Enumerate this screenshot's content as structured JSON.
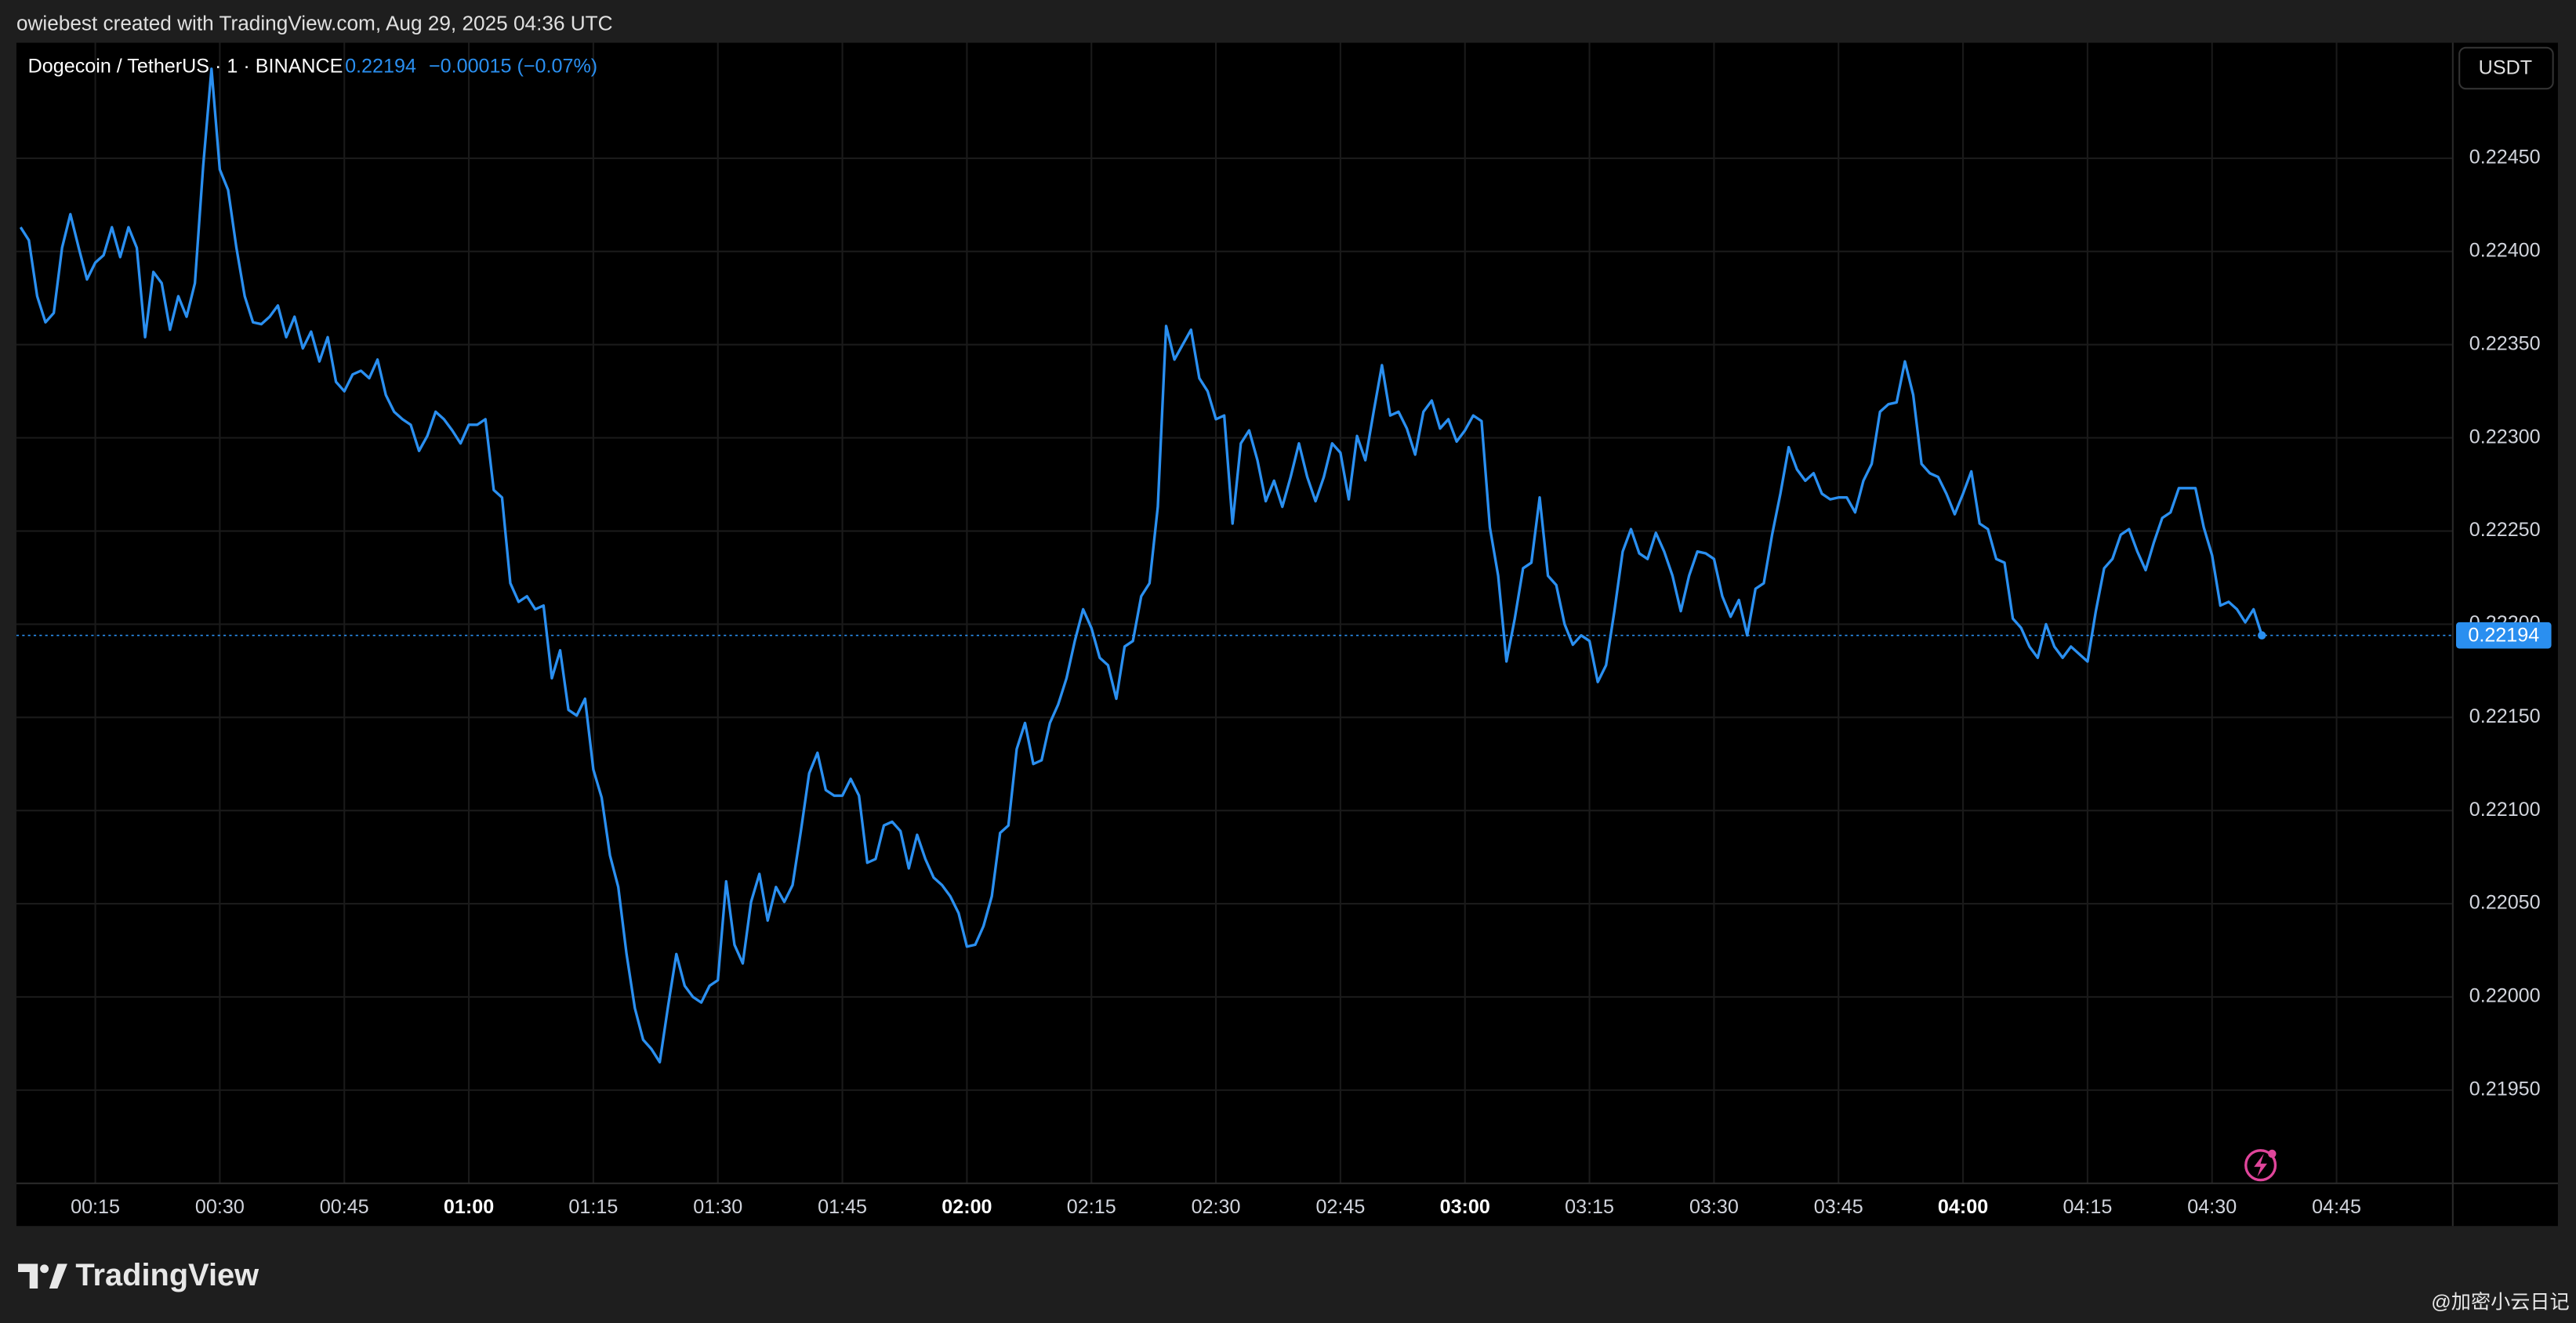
{
  "header": {
    "credit": "owiebest created with TradingView.com, Aug 29, 2025 04:36 UTC",
    "symbol": "Dogecoin / TetherUS · 1 · BINANCE",
    "change": "−0.00015 (−0.07%)",
    "currency": "USDT"
  },
  "footer": {
    "brand": "TradingView",
    "watermark": "@加密小云日记"
  },
  "chart_data": {
    "type": "line",
    "grid": true,
    "x": [
      6,
      7,
      8,
      9,
      10,
      11,
      12,
      13,
      14,
      15,
      16,
      17,
      18,
      19,
      20,
      21,
      22,
      23,
      24,
      25,
      26,
      27,
      28,
      29,
      30,
      31,
      32,
      33,
      34,
      35,
      36,
      37,
      38,
      39,
      40,
      41,
      42,
      43,
      44,
      45,
      46,
      47,
      48,
      49,
      50,
      51,
      52,
      53,
      54,
      55,
      56,
      57,
      58,
      59,
      60,
      61,
      62,
      63,
      64,
      65,
      66,
      67,
      68,
      69,
      70,
      71,
      72,
      73,
      74,
      75,
      76,
      77,
      78,
      79,
      80,
      81,
      82,
      83,
      84,
      85,
      86,
      87,
      88,
      89,
      90,
      91,
      92,
      93,
      94,
      95,
      96,
      97,
      98,
      99,
      100,
      101,
      102,
      103,
      104,
      105,
      106,
      107,
      108,
      109,
      110,
      111,
      112,
      113,
      114,
      115,
      116,
      117,
      118,
      119,
      120,
      121,
      122,
      123,
      124,
      125,
      126,
      127,
      128,
      129,
      130,
      131,
      132,
      133,
      134,
      135,
      136,
      137,
      138,
      139,
      140,
      141,
      142,
      143,
      144,
      145,
      146,
      147,
      148,
      149,
      150,
      151,
      152,
      153,
      154,
      155,
      156,
      157,
      158,
      159,
      160,
      161,
      162,
      163,
      164,
      165,
      166,
      167,
      168,
      169,
      170,
      171,
      172,
      173,
      174,
      175,
      176,
      177,
      178,
      179,
      180,
      181,
      182,
      183,
      184,
      185,
      186,
      187,
      188,
      189,
      190,
      191,
      192,
      193,
      194,
      195,
      196,
      197,
      198,
      199,
      200,
      201,
      202,
      203,
      204,
      205,
      206,
      207,
      208,
      209,
      210,
      211,
      212,
      213,
      214,
      215,
      216,
      217,
      218,
      219,
      220,
      221,
      222,
      223,
      224,
      225,
      226,
      227,
      228,
      229,
      230,
      231,
      232,
      233,
      234,
      235,
      236,
      237,
      238,
      239,
      240,
      241,
      242,
      243,
      244,
      245,
      246,
      247,
      248,
      249,
      250,
      251,
      252,
      253,
      254,
      255,
      256,
      257,
      258,
      259,
      260,
      261,
      262,
      263,
      264,
      265,
      266,
      267,
      268,
      269,
      270,
      271,
      272,
      273,
      274,
      275,
      276
    ],
    "series": [
      {
        "name": "Dogecoin / TetherUS",
        "color": "#2a8ff0",
        "values": [
          0.22413,
          0.22406,
          0.22376,
          0.22362,
          0.22367,
          0.22402,
          0.2242,
          0.22402,
          0.22385,
          0.22394,
          0.22398,
          0.22413,
          0.22397,
          0.22413,
          0.22402,
          0.22354,
          0.22389,
          0.22383,
          0.22358,
          0.22376,
          0.22365,
          0.22383,
          0.22446,
          0.22498,
          0.22444,
          0.22433,
          0.22402,
          0.22376,
          0.22362,
          0.22361,
          0.22365,
          0.22371,
          0.22354,
          0.22365,
          0.22348,
          0.22357,
          0.22341,
          0.22354,
          0.2233,
          0.22325,
          0.22334,
          0.22336,
          0.22332,
          0.22342,
          0.22323,
          0.22314,
          0.2231,
          0.22307,
          0.22293,
          0.22301,
          0.22314,
          0.2231,
          0.22304,
          0.22297,
          0.22307,
          0.22307,
          0.2231,
          0.22272,
          0.22268,
          0.22222,
          0.22212,
          0.22215,
          0.22208,
          0.2221,
          0.22171,
          0.22186,
          0.22154,
          0.22151,
          0.2216,
          0.22122,
          0.22107,
          0.22076,
          0.22059,
          0.22023,
          0.21994,
          0.21977,
          0.21972,
          0.21965,
          0.21995,
          0.22023,
          0.22006,
          0.22,
          0.21997,
          0.22006,
          0.22009,
          0.22062,
          0.22028,
          0.22018,
          0.22051,
          0.22066,
          0.22041,
          0.22059,
          0.22051,
          0.2206,
          0.22089,
          0.2212,
          0.22131,
          0.22111,
          0.22108,
          0.22108,
          0.22117,
          0.22108,
          0.22072,
          0.22074,
          0.22092,
          0.22094,
          0.22089,
          0.22069,
          0.22087,
          0.22074,
          0.22064,
          0.2206,
          0.22054,
          0.22045,
          0.22027,
          0.22028,
          0.22038,
          0.22054,
          0.22088,
          0.22092,
          0.22133,
          0.22147,
          0.22125,
          0.22127,
          0.22147,
          0.22157,
          0.22171,
          0.22191,
          0.22208,
          0.22198,
          0.22182,
          0.22178,
          0.2216,
          0.22188,
          0.22191,
          0.22215,
          0.22222,
          0.22263,
          0.2236,
          0.22342,
          0.2235,
          0.22358,
          0.22332,
          0.22325,
          0.2231,
          0.22312,
          0.22254,
          0.22297,
          0.22304,
          0.22288,
          0.22266,
          0.22277,
          0.22263,
          0.22279,
          0.22297,
          0.22279,
          0.22266,
          0.22279,
          0.22297,
          0.22292,
          0.22267,
          0.22301,
          0.22288,
          0.22314,
          0.22339,
          0.22312,
          0.22314,
          0.22305,
          0.22291,
          0.22314,
          0.2232,
          0.22305,
          0.2231,
          0.22298,
          0.22304,
          0.22312,
          0.22309,
          0.22252,
          0.22226,
          0.2218,
          0.22203,
          0.2223,
          0.22233,
          0.22268,
          0.22226,
          0.22221,
          0.222,
          0.22189,
          0.22194,
          0.22191,
          0.22169,
          0.22178,
          0.22207,
          0.22239,
          0.22251,
          0.22238,
          0.22235,
          0.22249,
          0.22239,
          0.22226,
          0.22207,
          0.22226,
          0.22239,
          0.22238,
          0.22235,
          0.22215,
          0.22204,
          0.22213,
          0.22194,
          0.22219,
          0.22222,
          0.22248,
          0.2227,
          0.22295,
          0.22283,
          0.22277,
          0.22281,
          0.2227,
          0.22267,
          0.22268,
          0.22268,
          0.2226,
          0.22277,
          0.22286,
          0.22314,
          0.22318,
          0.22319,
          0.22341,
          0.22323,
          0.22286,
          0.22281,
          0.22279,
          0.2227,
          0.22259,
          0.2227,
          0.22282,
          0.22254,
          0.22251,
          0.22235,
          0.22233,
          0.22203,
          0.22198,
          0.22188,
          0.22182,
          0.222,
          0.22188,
          0.22182,
          0.22188,
          0.22184,
          0.2218,
          0.22207,
          0.2223,
          0.22235,
          0.22248,
          0.22251,
          0.22239,
          0.22229,
          0.22244,
          0.22257,
          0.2226,
          0.22273,
          0.22273,
          0.22273,
          0.22252,
          0.22237,
          0.2221,
          0.22212,
          0.22208,
          0.22201,
          0.22208,
          0.22194
        ]
      }
    ],
    "xlim": [
      5.5,
      299
    ],
    "xticks": [
      {
        "value": 15,
        "label": "00:15"
      },
      {
        "value": 30,
        "label": "00:30"
      },
      {
        "value": 45,
        "label": "00:45"
      },
      {
        "value": 60,
        "label": "01:00"
      },
      {
        "value": 75,
        "label": "01:15"
      },
      {
        "value": 90,
        "label": "01:30"
      },
      {
        "value": 105,
        "label": "01:45"
      },
      {
        "value": 120,
        "label": "02:00"
      },
      {
        "value": 135,
        "label": "02:15"
      },
      {
        "value": 150,
        "label": "02:30"
      },
      {
        "value": 165,
        "label": "02:45"
      },
      {
        "value": 180,
        "label": "03:00"
      },
      {
        "value": 195,
        "label": "03:15"
      },
      {
        "value": 210,
        "label": "03:30"
      },
      {
        "value": 225,
        "label": "03:45"
      },
      {
        "value": 240,
        "label": "04:00"
      },
      {
        "value": 255,
        "label": "04:15"
      },
      {
        "value": 270,
        "label": "04:30"
      },
      {
        "value": 285,
        "label": "04:45"
      }
    ],
    "ylim": [
      0.219,
      0.22512
    ],
    "yticks": [
      {
        "value": 0.2195,
        "label": "0.21950"
      },
      {
        "value": 0.22,
        "label": "0.22000"
      },
      {
        "value": 0.2205,
        "label": "0.22050"
      },
      {
        "value": 0.221,
        "label": "0.22100"
      },
      {
        "value": 0.2215,
        "label": "0.22150"
      },
      {
        "value": 0.222,
        "label": "0.22200"
      },
      {
        "value": 0.2225,
        "label": "0.22250"
      },
      {
        "value": 0.223,
        "label": "0.22300"
      },
      {
        "value": 0.2235,
        "label": "0.22350"
      },
      {
        "value": 0.224,
        "label": "0.22400"
      },
      {
        "value": 0.2245,
        "label": "0.22450"
      }
    ]
  }
}
